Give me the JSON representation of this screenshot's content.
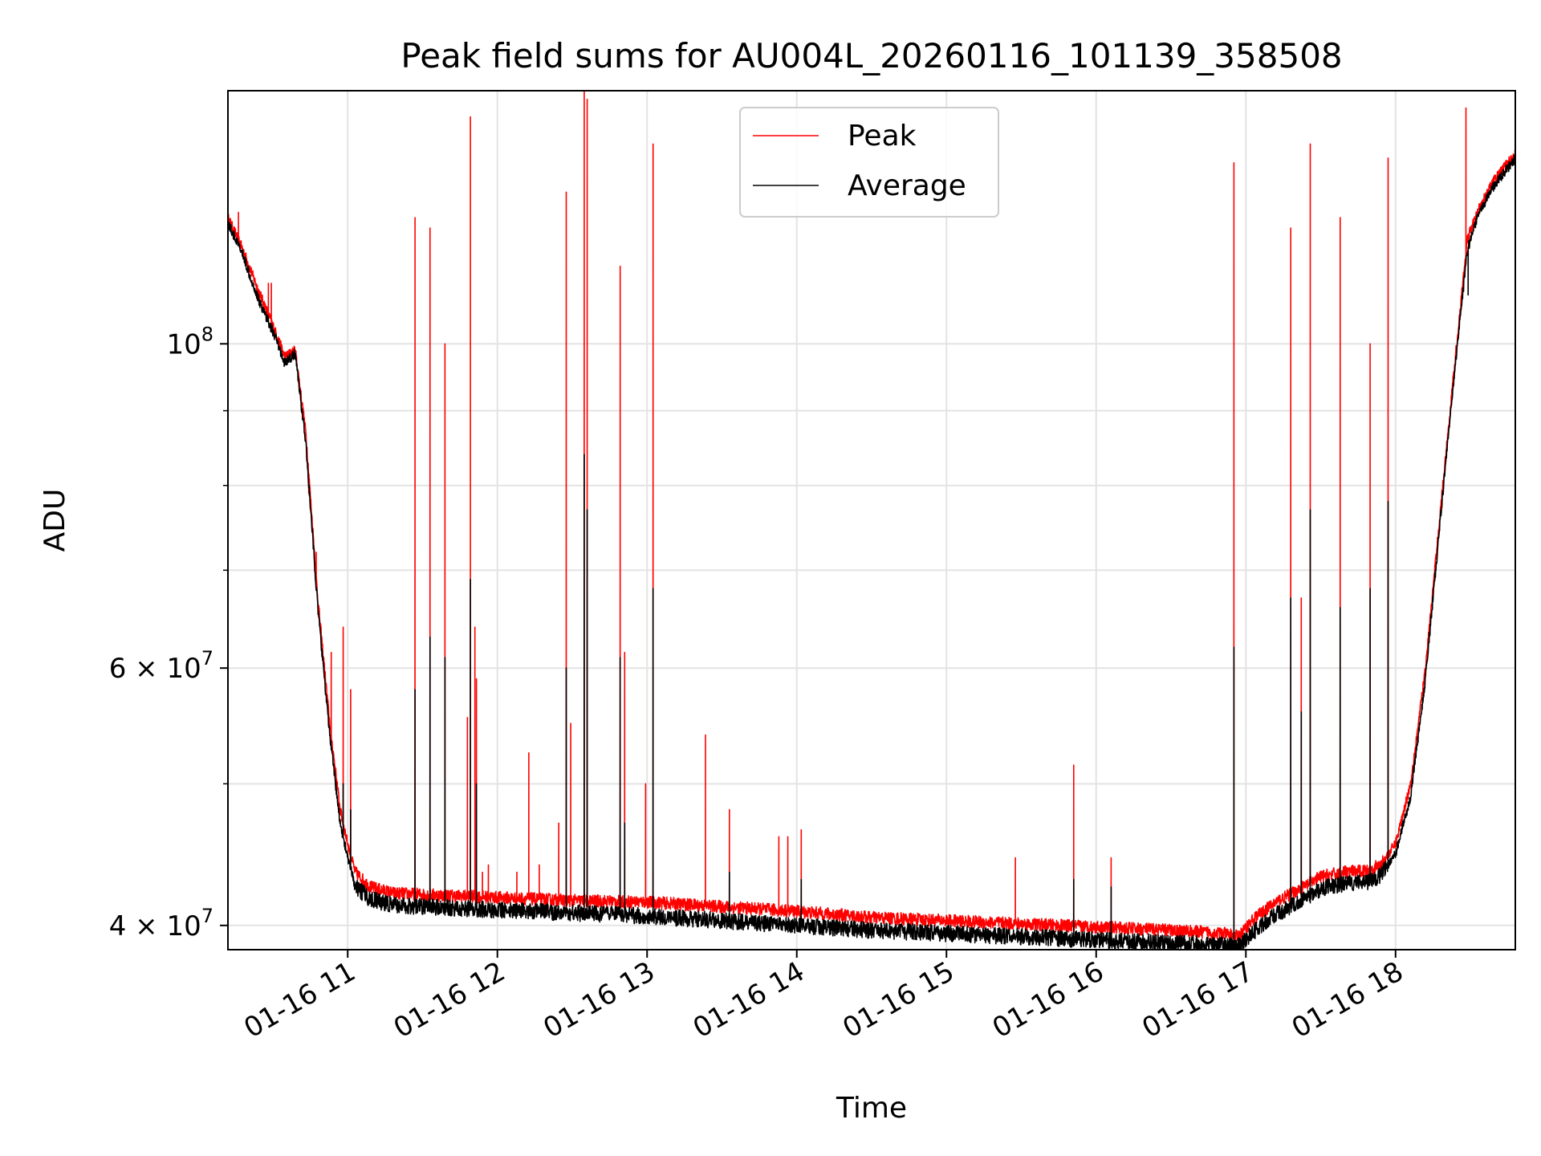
{
  "chart_data": {
    "type": "line",
    "title": "Peak field sums for AU004L_20260116_101139_358508",
    "xlabel": "Time",
    "ylabel": "ADU",
    "yscale": "log",
    "ylim": [
      38500000,
      149000000
    ],
    "xlim_hours": [
      10.2,
      18.8
    ],
    "grid": true,
    "legend_position": "upper-center",
    "x_ticks": [
      {
        "hour": 11,
        "label": "01-16 11"
      },
      {
        "hour": 12,
        "label": "01-16 12"
      },
      {
        "hour": 13,
        "label": "01-16 13"
      },
      {
        "hour": 14,
        "label": "01-16 14"
      },
      {
        "hour": 15,
        "label": "01-16 15"
      },
      {
        "hour": 16,
        "label": "01-16 16"
      },
      {
        "hour": 17,
        "label": "01-16 17"
      },
      {
        "hour": 18,
        "label": "01-16 18"
      }
    ],
    "y_major_ticks": [
      {
        "value": 40000000,
        "mantissa": "4",
        "exponent": "7"
      },
      {
        "value": 60000000,
        "mantissa": "6",
        "exponent": "7"
      },
      {
        "value": 100000000,
        "mantissa": "10",
        "exponent": "8"
      }
    ],
    "y_minor_ticks": [
      50000000,
      70000000,
      80000000,
      90000000
    ],
    "series": [
      {
        "name": "Peak",
        "color": "#ff0000",
        "baseline": [
          [
            10.2,
            122000000
          ],
          [
            10.3,
            116000000
          ],
          [
            10.4,
            109000000
          ],
          [
            10.5,
            103000000
          ],
          [
            10.58,
            98000000
          ],
          [
            10.65,
            99000000
          ],
          [
            10.72,
            87000000
          ],
          [
            10.8,
            67000000
          ],
          [
            10.88,
            55000000
          ],
          [
            10.95,
            48000000
          ],
          [
            11.0,
            45500000
          ],
          [
            11.05,
            43500000
          ],
          [
            11.15,
            42500000
          ],
          [
            11.3,
            42100000
          ],
          [
            11.5,
            42000000
          ],
          [
            12.0,
            41800000
          ],
          [
            12.5,
            41600000
          ],
          [
            13.0,
            41500000
          ],
          [
            13.5,
            41200000
          ],
          [
            14.0,
            40900000
          ],
          [
            14.5,
            40500000
          ],
          [
            15.0,
            40300000
          ],
          [
            15.5,
            40100000
          ],
          [
            16.0,
            39900000
          ],
          [
            16.5,
            39700000
          ],
          [
            16.85,
            39500000
          ],
          [
            16.95,
            39300000
          ],
          [
            17.05,
            40400000
          ],
          [
            17.2,
            41500000
          ],
          [
            17.35,
            42300000
          ],
          [
            17.5,
            43200000
          ],
          [
            17.65,
            43500000
          ],
          [
            17.8,
            43600000
          ],
          [
            17.9,
            44000000
          ],
          [
            18.0,
            45500000
          ],
          [
            18.1,
            50000000
          ],
          [
            18.2,
            60000000
          ],
          [
            18.3,
            77000000
          ],
          [
            18.4,
            98000000
          ],
          [
            18.48,
            118000000
          ],
          [
            18.56,
            124000000
          ],
          [
            18.65,
            129000000
          ],
          [
            18.75,
            133000000
          ],
          [
            18.8,
            135000000
          ]
        ],
        "spikes": [
          [
            10.27,
            123000000
          ],
          [
            10.35,
            112000000
          ],
          [
            10.47,
            110000000
          ],
          [
            10.49,
            110000000
          ],
          [
            10.74,
            79000000
          ],
          [
            10.79,
            72000000
          ],
          [
            10.89,
            61500000
          ],
          [
            10.97,
            64000000
          ],
          [
            11.02,
            58000000
          ],
          [
            11.45,
            122000000
          ],
          [
            11.55,
            120000000
          ],
          [
            11.65,
            100000000
          ],
          [
            11.8,
            55500000
          ],
          [
            11.82,
            143000000
          ],
          [
            11.85,
            64000000
          ],
          [
            11.86,
            59000000
          ],
          [
            11.9,
            43500000
          ],
          [
            11.94,
            44000000
          ],
          [
            12.13,
            43500000
          ],
          [
            12.21,
            52500000
          ],
          [
            12.28,
            44000000
          ],
          [
            12.41,
            47000000
          ],
          [
            12.46,
            127000000
          ],
          [
            12.49,
            55000000
          ],
          [
            12.58,
            149000000
          ],
          [
            12.6,
            147000000
          ],
          [
            12.82,
            113000000
          ],
          [
            12.85,
            61500000
          ],
          [
            12.99,
            50000000
          ],
          [
            13.04,
            137000000
          ],
          [
            13.39,
            54000000
          ],
          [
            13.55,
            48000000
          ],
          [
            13.88,
            46000000
          ],
          [
            13.94,
            46000000
          ],
          [
            14.03,
            46500000
          ],
          [
            15.46,
            44500000
          ],
          [
            15.85,
            51500000
          ],
          [
            16.1,
            44500000
          ],
          [
            16.92,
            133000000
          ],
          [
            17.3,
            120000000
          ],
          [
            17.37,
            67000000
          ],
          [
            17.43,
            137000000
          ],
          [
            17.63,
            122000000
          ],
          [
            17.83,
            100000000
          ],
          [
            17.95,
            134000000
          ],
          [
            18.47,
            145000000
          ]
        ]
      },
      {
        "name": "Average",
        "color": "#000000",
        "baseline": [
          [
            10.2,
            121000000
          ],
          [
            10.3,
            115000000
          ],
          [
            10.4,
            107500000
          ],
          [
            10.5,
            102000000
          ],
          [
            10.58,
            97000000
          ],
          [
            10.65,
            98500000
          ],
          [
            10.72,
            85500000
          ],
          [
            10.8,
            66000000
          ],
          [
            10.88,
            54000000
          ],
          [
            10.95,
            47000000
          ],
          [
            11.0,
            44500000
          ],
          [
            11.05,
            42500000
          ],
          [
            11.15,
            41700000
          ],
          [
            11.3,
            41300000
          ],
          [
            11.5,
            41200000
          ],
          [
            12.0,
            41000000
          ],
          [
            12.5,
            40800000
          ],
          [
            13.0,
            40600000
          ],
          [
            13.5,
            40300000
          ],
          [
            14.0,
            40000000
          ],
          [
            14.5,
            39700000
          ],
          [
            15.0,
            39500000
          ],
          [
            15.5,
            39300000
          ],
          [
            16.0,
            39100000
          ],
          [
            16.5,
            38900000
          ],
          [
            16.85,
            38800000
          ],
          [
            16.95,
            38700000
          ],
          [
            17.05,
            39600000
          ],
          [
            17.2,
            40700000
          ],
          [
            17.35,
            41500000
          ],
          [
            17.5,
            42400000
          ],
          [
            17.65,
            42700000
          ],
          [
            17.8,
            42800000
          ],
          [
            17.9,
            43300000
          ],
          [
            18.0,
            44800000
          ],
          [
            18.1,
            49000000
          ],
          [
            18.2,
            59000000
          ],
          [
            18.3,
            76000000
          ],
          [
            18.4,
            97000000
          ],
          [
            18.48,
            116000000
          ],
          [
            18.56,
            123000000
          ],
          [
            18.65,
            128000000
          ],
          [
            18.75,
            132000000
          ],
          [
            18.8,
            134000000
          ]
        ],
        "spikes": [
          [
            10.97,
            50000000
          ],
          [
            11.02,
            48000000
          ],
          [
            11.45,
            58000000
          ],
          [
            11.55,
            63000000
          ],
          [
            11.65,
            61000000
          ],
          [
            11.82,
            69000000
          ],
          [
            11.86,
            50000000
          ],
          [
            12.46,
            60000000
          ],
          [
            12.58,
            84000000
          ],
          [
            12.6,
            77000000
          ],
          [
            12.82,
            61000000
          ],
          [
            12.85,
            47000000
          ],
          [
            13.04,
            68000000
          ],
          [
            13.55,
            43500000
          ],
          [
            14.03,
            43000000
          ],
          [
            15.85,
            43000000
          ],
          [
            16.1,
            42500000
          ],
          [
            16.92,
            62000000
          ],
          [
            17.3,
            67000000
          ],
          [
            17.37,
            56000000
          ],
          [
            17.43,
            77000000
          ],
          [
            17.63,
            66000000
          ],
          [
            17.83,
            68000000
          ],
          [
            17.95,
            78000000
          ],
          [
            18.485,
            108000000
          ]
        ]
      }
    ]
  }
}
